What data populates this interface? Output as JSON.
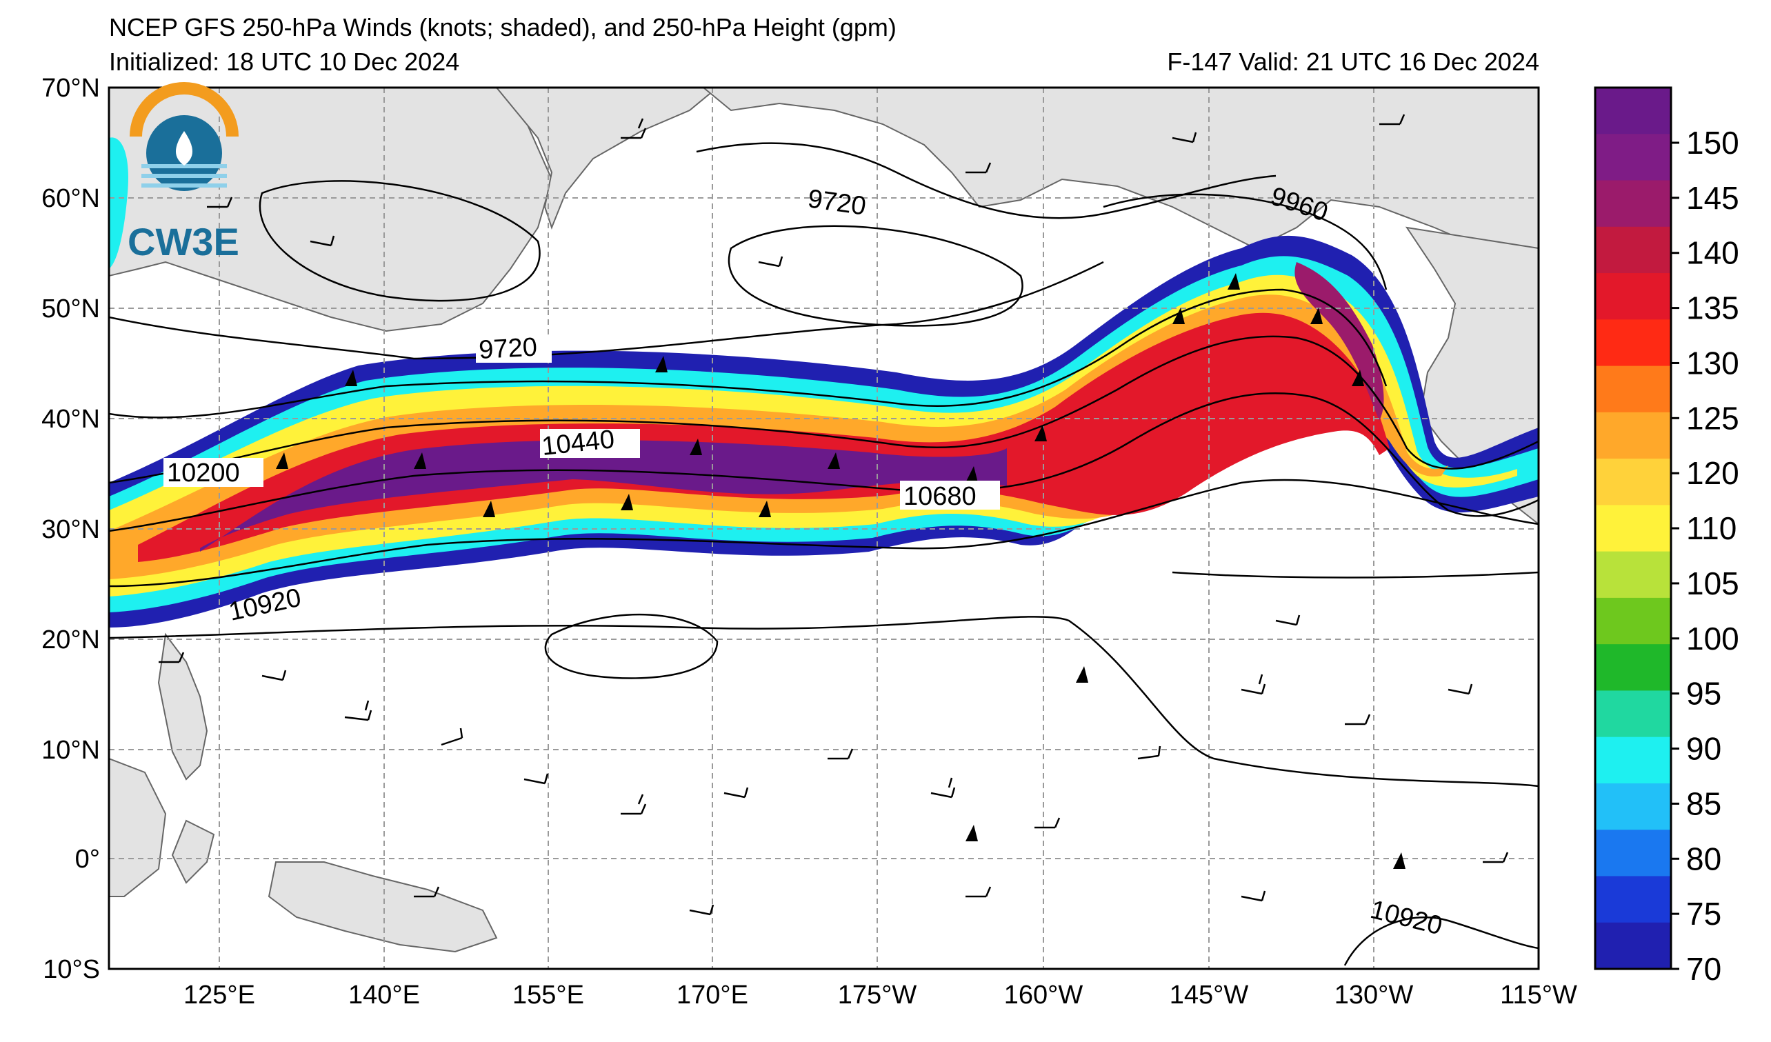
{
  "title": "NCEP GFS 250-hPa Winds (knots; shaded), and 250-hPa Height (gpm)",
  "initialized": "Initialized: 18 UTC 10 Dec 2024",
  "valid": "F-147  Valid: 21 UTC 16 Dec 2024",
  "logo_text": "CW3E",
  "lat_ticks": [
    "70°N",
    "60°N",
    "50°N",
    "40°N",
    "30°N",
    "20°N",
    "10°N",
    "0°",
    "10°S"
  ],
  "lon_ticks": [
    "125°E",
    "140°E",
    "155°E",
    "170°E",
    "175°W",
    "160°W",
    "145°W",
    "130°W",
    "115°W"
  ],
  "colorbar": {
    "labels": [
      "150",
      "145",
      "140",
      "135",
      "130",
      "125",
      "120",
      "110",
      "105",
      "100",
      "95",
      "90",
      "85",
      "80",
      "75",
      "70"
    ],
    "colors": [
      "#6a1a8a",
      "#7f1c86",
      "#9b1b6b",
      "#c21a3f",
      "#e3182a",
      "#ff2a14",
      "#ff7a1a",
      "#ffa82a",
      "#ffd23a",
      "#fff23a",
      "#b8e23a",
      "#6ec81e",
      "#1fb82a",
      "#20d8a0",
      "#1ef0f0",
      "#22c0f8",
      "#1a78f0",
      "#1a3ad8",
      "#2020b0"
    ]
  },
  "contour_labels": [
    "9720",
    "9960",
    "9720",
    "10200",
    "10440",
    "10680",
    "10920",
    "10920"
  ],
  "colors": {
    "land": "#e3e3e3",
    "coast": "#666666",
    "contour": "#000000",
    "grid": "#9a9a9a"
  }
}
